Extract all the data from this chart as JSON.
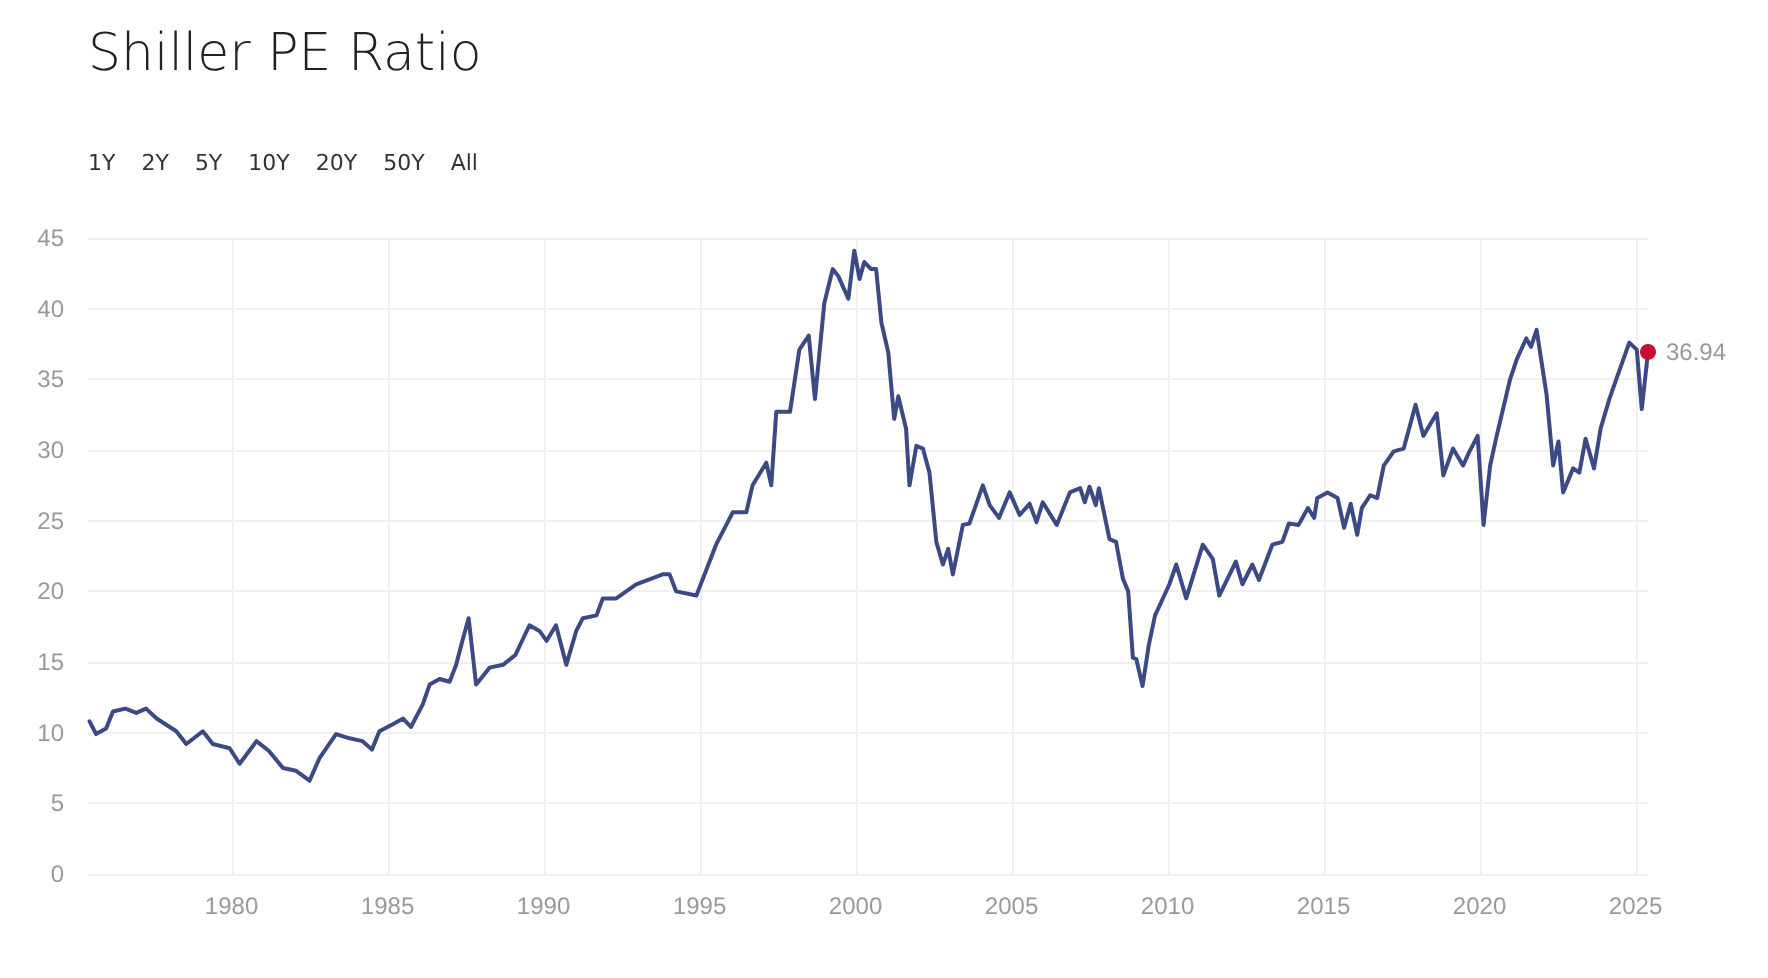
{
  "chart_data": {
    "type": "line",
    "title": "Shiller PE Ratio",
    "annotations": [
      "1Y",
      "2Y",
      "5Y",
      "10Y",
      "20Y",
      "50Y",
      "All"
    ],
    "xlim": [
      1975.4,
      2025.4
    ],
    "xticks": [
      1980,
      1985,
      1990,
      1995,
      2000,
      2005,
      2010,
      2015,
      2020,
      2025
    ],
    "ylim": [
      0,
      45
    ],
    "yticks": [
      0,
      5,
      10,
      15,
      20,
      25,
      30,
      35,
      40,
      45
    ],
    "grid": true,
    "series": [
      {
        "color": "#3b4a85",
        "marker": "none",
        "line_style": "solid",
        "x": [
          1975.45,
          1975.66,
          1975.98,
          1976.2,
          1976.6,
          1976.95,
          1977.26,
          1977.6,
          1978.23,
          1978.55,
          1979.08,
          1979.4,
          1979.94,
          1980.26,
          1980.8,
          1981.2,
          1981.65,
          1982.07,
          1982.5,
          1982.82,
          1983.35,
          1983.78,
          1984.2,
          1984.5,
          1984.74,
          1985.17,
          1985.5,
          1985.75,
          1986.13,
          1986.35,
          1986.67,
          1986.99,
          1987.2,
          1987.4,
          1987.6,
          1987.84,
          1988.27,
          1988.7,
          1989.1,
          1989.55,
          1989.87,
          1990.1,
          1990.4,
          1990.73,
          1991.05,
          1991.26,
          1991.7,
          1991.9,
          1992.33,
          1992.97,
          1993.82,
          1994.04,
          1994.25,
          1994.9,
          1995.53,
          1996.07,
          1996.5,
          1996.7,
          1997.14,
          1997.3,
          1997.46,
          1997.9,
          1998.2,
          1998.5,
          1998.7,
          1999.0,
          1999.27,
          1999.45,
          1999.77,
          1999.96,
          2000.13,
          2000.28,
          2000.5,
          2000.66,
          2000.83,
          2001.05,
          2001.24,
          2001.37,
          2001.62,
          2001.73,
          2001.95,
          2002.16,
          2002.37,
          2002.59,
          2002.8,
          2002.97,
          2003.12,
          2003.44,
          2003.65,
          2004.08,
          2004.3,
          2004.6,
          2004.94,
          2005.26,
          2005.58,
          2005.8,
          2006.0,
          2006.45,
          2006.87,
          2007.2,
          2007.35,
          2007.5,
          2007.7,
          2007.8,
          2008.14,
          2008.35,
          2008.57,
          2008.74,
          2008.89,
          2009.0,
          2009.2,
          2009.4,
          2009.6,
          2009.75,
          2010.06,
          2010.28,
          2010.6,
          2011.13,
          2011.45,
          2011.66,
          2012.19,
          2012.4,
          2012.72,
          2012.93,
          2013.36,
          2013.68,
          2013.89,
          2014.2,
          2014.5,
          2014.7,
          2014.8,
          2015.13,
          2015.45,
          2015.66,
          2015.87,
          2016.08,
          2016.23,
          2016.5,
          2016.72,
          2016.93,
          2017.25,
          2017.57,
          2017.95,
          2018.2,
          2018.63,
          2018.84,
          2019.15,
          2019.47,
          2019.68,
          2019.94,
          2020.13,
          2020.34,
          2020.55,
          2020.98,
          2021.19,
          2021.5,
          2021.65,
          2021.83,
          2022.15,
          2022.36,
          2022.53,
          2022.68,
          2023.0,
          2023.2,
          2023.4,
          2023.67,
          2023.88,
          2024.16,
          2024.43,
          2024.8,
          2025.04,
          2025.2,
          2025.4
        ],
        "values": [
          10.8,
          9.9,
          10.3,
          11.5,
          11.7,
          11.4,
          11.7,
          11.0,
          10.1,
          9.2,
          10.1,
          9.2,
          8.9,
          7.8,
          9.4,
          8.7,
          7.5,
          7.3,
          6.6,
          8.2,
          9.9,
          9.6,
          9.4,
          8.8,
          10.1,
          10.6,
          11.0,
          10.4,
          12.0,
          13.4,
          13.8,
          13.6,
          14.8,
          16.5,
          18.1,
          13.4,
          14.6,
          14.8,
          15.5,
          17.6,
          17.2,
          16.5,
          17.6,
          14.8,
          17.2,
          18.1,
          18.3,
          19.5,
          19.5,
          20.5,
          21.2,
          21.2,
          20.0,
          19.7,
          23.3,
          25.6,
          25.6,
          27.5,
          29.1,
          27.5,
          32.7,
          32.7,
          37.1,
          38.1,
          33.6,
          40.4,
          42.8,
          42.3,
          40.7,
          44.1,
          42.1,
          43.3,
          42.8,
          42.8,
          39.0,
          36.9,
          32.2,
          33.8,
          31.5,
          27.5,
          30.3,
          30.1,
          28.4,
          23.5,
          21.9,
          23.0,
          21.2,
          24.7,
          24.8,
          27.5,
          26.1,
          25.2,
          27.0,
          25.4,
          26.2,
          24.9,
          26.3,
          24.7,
          27.0,
          27.3,
          26.3,
          27.4,
          26.1,
          27.3,
          23.7,
          23.5,
          20.9,
          20.0,
          15.3,
          15.2,
          13.3,
          16.2,
          18.3,
          19.0,
          20.5,
          21.9,
          19.5,
          23.3,
          22.3,
          19.7,
          22.1,
          20.5,
          21.9,
          20.8,
          23.3,
          23.5,
          24.8,
          24.7,
          25.9,
          25.2,
          26.6,
          27.0,
          26.6,
          24.5,
          26.2,
          24.0,
          25.9,
          26.8,
          26.6,
          28.9,
          29.9,
          30.1,
          33.2,
          31.0,
          32.6,
          28.2,
          30.1,
          28.9,
          29.9,
          31.0,
          24.7,
          28.9,
          31.0,
          35.0,
          36.4,
          37.9,
          37.3,
          38.5,
          33.9,
          28.9,
          30.6,
          27.0,
          28.7,
          28.4,
          30.8,
          28.7,
          31.5,
          33.6,
          35.3,
          37.6,
          37.1,
          32.9,
          36.9
        ]
      },
      {
        "type": "scatter",
        "color": "#c8102e",
        "marker": "circle",
        "x": [
          2025.4
        ],
        "values": [
          36.94
        ],
        "value_labels": [
          "36.94"
        ]
      }
    ]
  }
}
